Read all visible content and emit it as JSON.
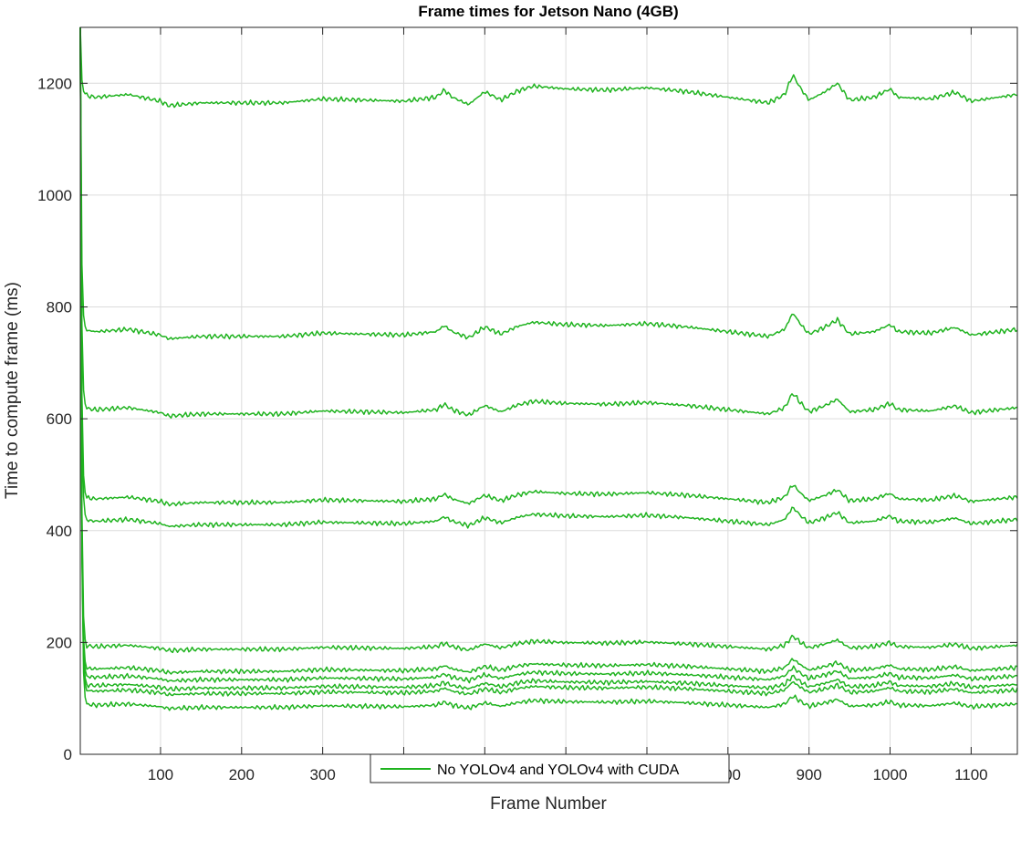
{
  "chart_data": {
    "type": "line",
    "title": "Frame times for Jetson Nano (4GB)",
    "xlabel": "Frame Number",
    "ylabel": "Time to compute frame (ms)",
    "xlim": [
      1,
      1157
    ],
    "ylim": [
      0,
      1300
    ],
    "xticks": [
      100,
      200,
      300,
      400,
      500,
      600,
      700,
      800,
      900,
      1000,
      1100
    ],
    "yticks": [
      0,
      200,
      400,
      600,
      800,
      1000,
      1200
    ],
    "grid": true,
    "legend": {
      "position": "bottom-center",
      "entries": [
        "No YOLOv4 and YOLOv4 with CUDA"
      ]
    },
    "series_color": "#1fb31f",
    "series_baselines": [
      1180,
      760,
      620,
      460,
      420,
      195,
      155,
      140,
      125,
      115,
      90
    ],
    "series": [
      {
        "start_value": 1300,
        "x": [
          1,
          20,
          60,
          100,
          110,
          150,
          200,
          250,
          300,
          400,
          440,
          450,
          460,
          480,
          500,
          520,
          540,
          560,
          600,
          650,
          700,
          750,
          800,
          850,
          870,
          880,
          890,
          900,
          920,
          935,
          950,
          980,
          1000,
          1010,
          1050,
          1080,
          1100,
          1157
        ],
        "offset": [
          0,
          -5,
          0,
          -12,
          -20,
          -15,
          -15,
          -15,
          -8,
          -12,
          -5,
          8,
          -5,
          -18,
          5,
          -10,
          6,
          15,
          10,
          8,
          12,
          5,
          -5,
          -15,
          0,
          35,
          10,
          -10,
          5,
          20,
          -10,
          -5,
          10,
          -5,
          -8,
          4,
          -12,
          0
        ]
      }
    ]
  }
}
